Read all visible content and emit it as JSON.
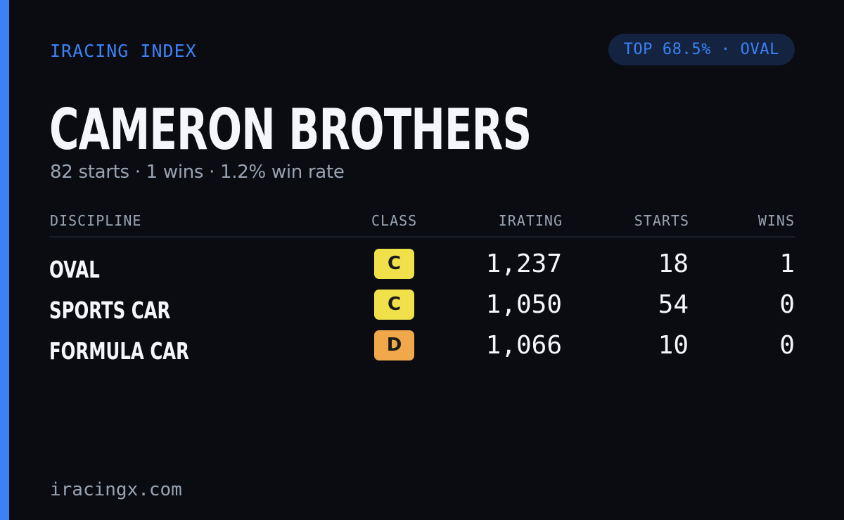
{
  "header": {
    "brand": "IRACING INDEX",
    "rank_pill": "TOP 68.5% · OVAL"
  },
  "driver": {
    "name": "CAMERON BROTHERS",
    "summary": "82 starts · 1 wins · 1.2% win rate"
  },
  "table": {
    "columns": {
      "discipline": "DISCIPLINE",
      "class": "CLASS",
      "irating": "IRATING",
      "starts": "STARTS",
      "wins": "WINS"
    },
    "rows": [
      {
        "discipline": "OVAL",
        "class": "C",
        "class_color": "#f0e14a",
        "irating": "1,237",
        "starts": "18",
        "wins": "1"
      },
      {
        "discipline": "SPORTS CAR",
        "class": "C",
        "class_color": "#f0e14a",
        "irating": "1,050",
        "starts": "54",
        "wins": "0"
      },
      {
        "discipline": "FORMULA CAR",
        "class": "D",
        "class_color": "#f0a84a",
        "irating": "1,066",
        "starts": "10",
        "wins": "0"
      }
    ]
  },
  "footer": {
    "site": "iracingx.com"
  },
  "colors": {
    "background": "#0a0c12",
    "accent": "#3b82f6",
    "text_primary": "#f4f6fa",
    "text_muted": "#9aa3b2"
  }
}
